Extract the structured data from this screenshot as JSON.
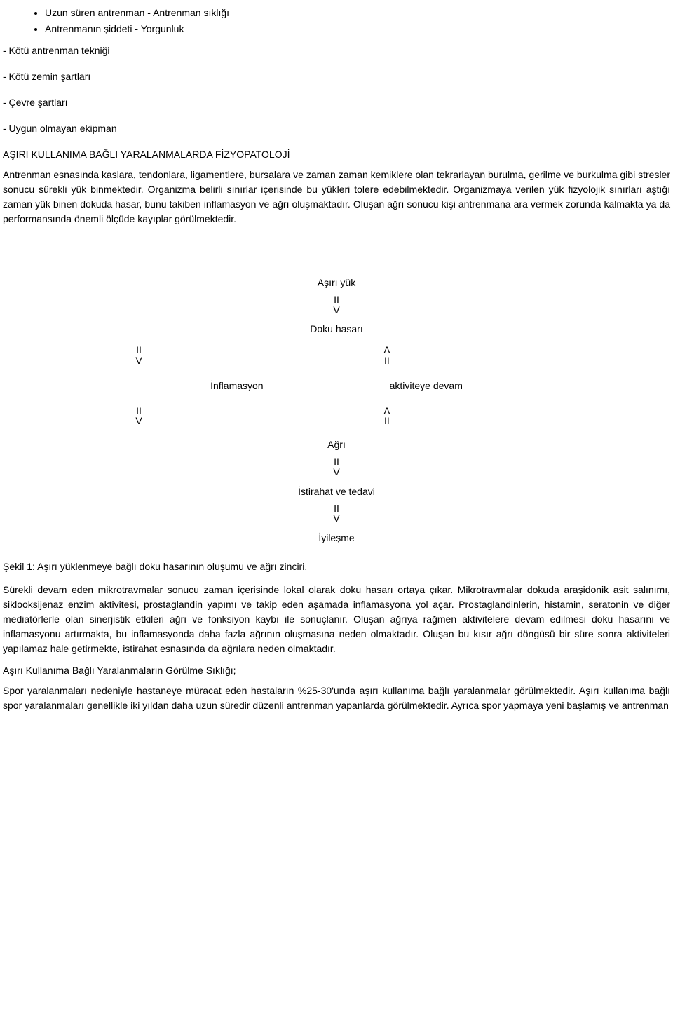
{
  "colors": {
    "background": "#ffffff",
    "text": "#000000"
  },
  "typography": {
    "family": "Verdana, Tahoma, Arial, sans-serif",
    "body_size_pt": 10.5,
    "line_height": 1.5
  },
  "bullets": [
    "Uzun süren antrenman - Antrenman sıklığı",
    "Antrenmanın şiddeti - Yorgunluk"
  ],
  "dash_lines": [
    "- Kötü antrenman tekniği",
    "- Kötü zemin şartları",
    "- Çevre şartları",
    "- Uygun olmayan ekipman"
  ],
  "heading": "AŞIRI KULLANIMA BAĞLI YARALANMALARDA FİZYOPATOLOJİ",
  "para1": "Antrenman esnasında kaslara, tendonlara, ligamentlere, bursalara ve zaman zaman kemiklere olan tekrarlayan burulma, gerilme ve burkulma gibi stresler sonucu sürekli yük binmektedir. Organizma belirli sınırlar içerisinde bu yükleri tolere edebilmektedir. Organizmaya verilen yük fizyolojik sınırları aştığı zaman yük binen dokuda hasar, bunu takiben inflamasyon ve ağrı oluşmaktadır. Oluşan ağrı sonucu kişi antrenmana ara vermek zorunda kalmakta ya da performansında önemli ölçüde kayıplar görülmektedir.",
  "diagram": {
    "type": "flowchart",
    "arrow_down": "II\nV",
    "arrow_up": "Λ\nII",
    "n1": "Aşırı yük",
    "n2": "Doku hasarı",
    "n3_left": "İnflamasyon",
    "n3_right": "aktiviteye devam",
    "n4": "Ağrı",
    "n5": "İstirahat ve tedavi",
    "n6": "İyileşme"
  },
  "caption": "Şekil 1: Aşırı yüklenmeye bağlı doku hasarının oluşumu ve ağrı zinciri.",
  "para2": "Sürekli devam eden mikrotravmalar sonucu zaman içerisinde lokal olarak doku hasarı ortaya çıkar. Mikrotravmalar dokuda araşidonik asit salınımı, siklooksijenaz enzim aktivitesi, prostaglandin yapımı ve takip eden aşamada inflamasyona yol açar. Prostaglandinlerin, histamin, seratonin ve diğer mediatörlerle olan sinerjistik etkileri ağrı ve fonksiyon kaybı ile sonuçlanır. Oluşan ağrıya rağmen aktivitelere devam edilmesi doku hasarını ve inflamasyonu artırmakta, bu inflamasyonda daha fazla ağrının oluşmasına neden olmaktadır. Oluşan bu kısır ağrı döngüsü bir süre sonra aktiviteleri yapılamaz hale getirmekte, istirahat esnasında da ağrılara neden olmaktadır.",
  "subheading": "Aşırı Kullanıma Bağlı Yaralanmaların Görülme Sıklığı;",
  "para3": "Spor yaralanmaları nedeniyle hastaneye müracat eden hastaların %25-30'unda aşırı kullanıma bağlı yaralanmalar görülmektedir. Aşırı kullanıma bağlı spor yaralanmaları genellikle iki yıldan daha uzun süredir düzenli antrenman yapanlarda görülmektedir. Ayrıca spor yapmaya yeni başlamış ve antrenman"
}
